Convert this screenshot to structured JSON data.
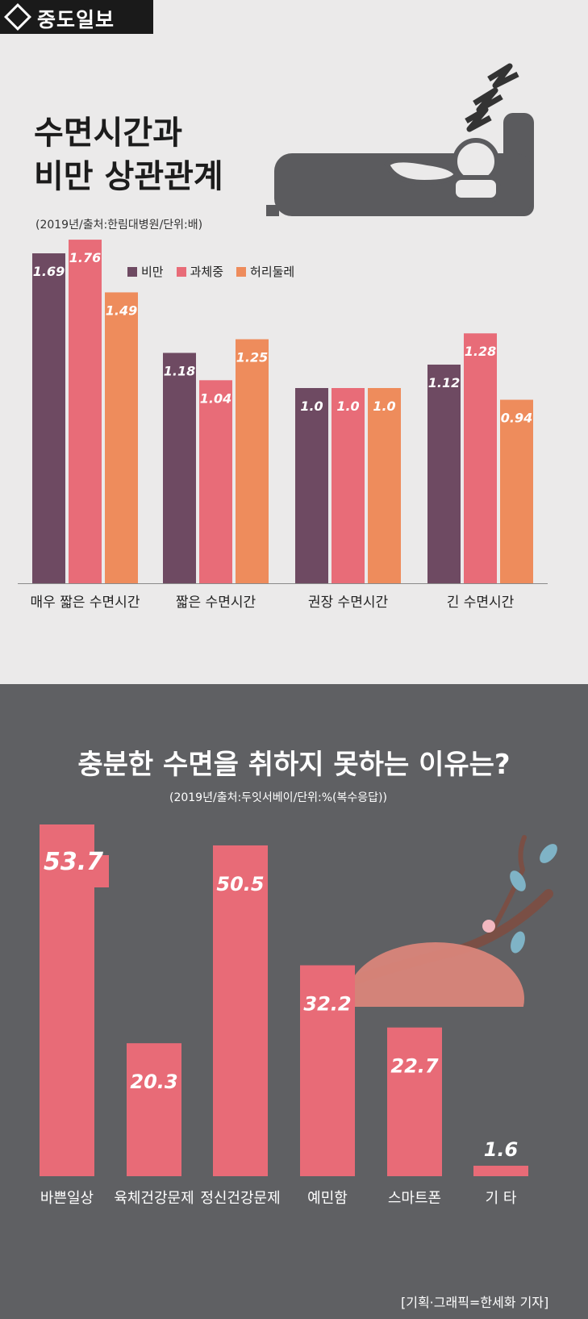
{
  "logo": {
    "text": "중도일보"
  },
  "section1": {
    "title_line1": "수면시간과",
    "title_line2": "비만 상관관계",
    "source": "(2019년/출처:한림대병원/단위:배)"
  },
  "section2": {
    "title": "충분한 수면을 취하지 못하는 이유는?",
    "source": "(2019년/출처:두잇서베이/단위:%(복수응답))"
  },
  "credit": "[기획·그래픽=한세화 기자]",
  "colors": {
    "obesity": "#6e4a62",
    "overweight": "#e86c78",
    "waist": "#ee8c5c",
    "bar2": "#e86b77"
  },
  "chart_data": [
    {
      "type": "bar",
      "title": "수면시간과 비만 상관관계",
      "categories": [
        "매우 짧은 수면시간",
        "짧은 수면시간",
        "권장 수면시간",
        "긴 수면시간"
      ],
      "series": [
        {
          "name": "비만",
          "values": [
            1.69,
            1.18,
            1.0,
            1.12
          ],
          "labels": [
            "1.69",
            "1.18",
            "1.0",
            "1.12"
          ]
        },
        {
          "name": "과체중",
          "values": [
            1.76,
            1.04,
            1.0,
            1.28
          ],
          "labels": [
            "1.76",
            "1.04",
            "1.0",
            "1.28"
          ]
        },
        {
          "name": "허리둘레",
          "values": [
            1.49,
            1.25,
            1.0,
            0.94
          ],
          "labels": [
            "1.49",
            "1.25",
            "1.0",
            "0.94"
          ]
        }
      ],
      "legend": "top-left",
      "grid": false
    },
    {
      "type": "bar",
      "title": "충분한 수면을 취하지 못하는 이유는?",
      "categories": [
        "바쁜일상",
        "육체건강문제",
        "정신건강문제",
        "예민함",
        "스마트폰",
        "기 타"
      ],
      "values": [
        53.7,
        20.3,
        50.5,
        32.2,
        22.7,
        1.6
      ],
      "labels": [
        "53.7",
        "20.3",
        "50.5",
        "32.2",
        "22.7",
        "1.6"
      ],
      "grid": false
    }
  ]
}
